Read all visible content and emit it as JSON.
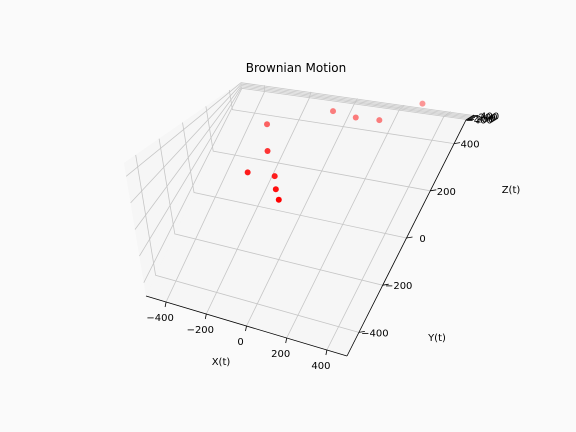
{
  "chart_data": {
    "type": "scatter",
    "title": "Brownian Motion",
    "xlabel": "X(t)",
    "ylabel": "Y(t)",
    "zlabel": "Z(t)",
    "xticks": [
      "−400",
      "−200",
      "0",
      "200",
      "400"
    ],
    "yticks": [
      "−400",
      "−200",
      "0",
      "200",
      "400"
    ],
    "zticks": [
      "−400",
      "−200",
      "0",
      "200",
      "400"
    ],
    "xlim": [
      -500,
      500
    ],
    "ylim": [
      -500,
      500
    ],
    "zlim": [
      -500,
      500
    ],
    "grid": true,
    "projection": "3d",
    "marker_color": "#ff0000",
    "points": [
      {
        "x": -30,
        "y": 360,
        "z": 430
      },
      {
        "x": 60,
        "y": 380,
        "z": 200
      },
      {
        "x": -230,
        "y": 190,
        "z": 340
      },
      {
        "x": 150,
        "y": 410,
        "z": 10
      },
      {
        "x": -140,
        "y": 20,
        "z": 260
      },
      {
        "x": 260,
        "y": 540,
        "z": 380
      },
      {
        "x": -70,
        "y": -60,
        "z": 100
      },
      {
        "x": -170,
        "y": -100,
        "z": 160
      },
      {
        "x": -40,
        "y": -110,
        "z": 45
      },
      {
        "x": 0,
        "y": -160,
        "z": 30
      }
    ]
  }
}
